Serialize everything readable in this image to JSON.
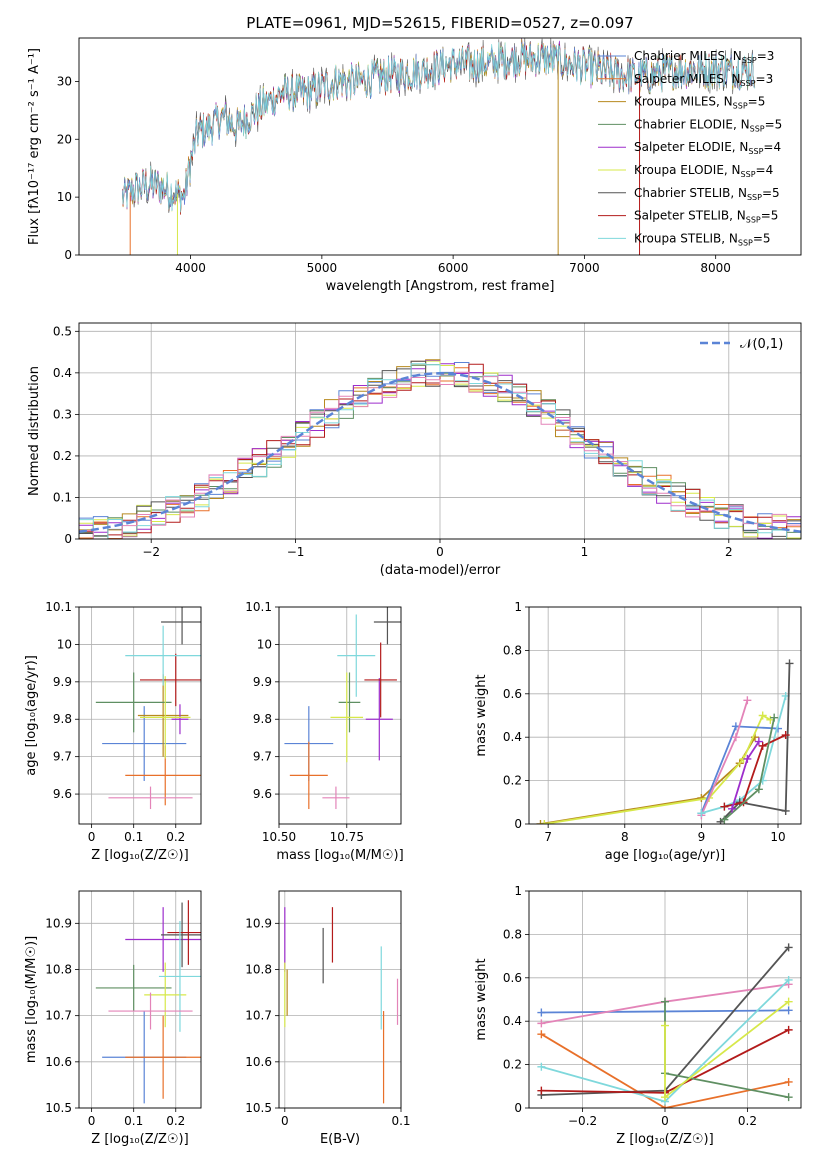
{
  "figure_title": "PLATE=0961, MJD=52615, FIBERID=0527, z=0.097",
  "colors": {
    "Chabrier MILES": "#5b84d6",
    "Salpeter MILES": "#e8702a",
    "Kroupa MILES": "#b7891f",
    "Chabrier ELODIE": "#5f8f62",
    "Salpeter ELODIE": "#9d2ecc",
    "Kroupa ELODIE": "#d7e84a",
    "Chabrier STELIB": "#545454",
    "Salpeter STELIB": "#b31b1b",
    "Kroupa STELIB": "#7fd8dc",
    "pink": "#e384b8",
    "normal": "#5b84d6"
  },
  "chart_data": [
    {
      "id": "spectrum",
      "type": "line",
      "xlabel": "wavelength [Angstrom, rest frame]",
      "ylabel": "Flux [fλ10⁻¹⁷ erg cm⁻² s⁻¹ A⁻¹]",
      "xlim": [
        3150,
        8650
      ],
      "ylim": [
        0,
        37.5
      ],
      "xticks": [
        4000,
        5000,
        6000,
        7000,
        8000
      ],
      "yticks": [
        0,
        10,
        20,
        30
      ],
      "legend_position": "upper-right",
      "legend": [
        "Chabrier MILES, N_SSP=3",
        "Salpeter MILES, N_SSP=3",
        "Kroupa MILES, N_SSP=5",
        "Chabrier ELODIE, N_SSP=5",
        "Salpeter ELODIE, N_SSP=4",
        "Kroupa ELODIE, N_SSP=4",
        "Chabrier STELIB, N_SSP=5",
        "Salpeter STELIB, N_SSP=5",
        "Kroupa STELIB, N_SSP=5"
      ],
      "shape_x": [
        3500,
        3550,
        3650,
        3750,
        3850,
        3950,
        4000,
        4050,
        4150,
        4250,
        4350,
        4500,
        4700,
        4900,
        5100,
        5300,
        5500,
        5800,
        6000,
        6200,
        6500,
        6700,
        6900,
        7100,
        7300,
        7500,
        7700,
        7900,
        8100,
        8300
      ],
      "shape_y": [
        10,
        11,
        12,
        12,
        11,
        10,
        16,
        21,
        22,
        24,
        22,
        25,
        28,
        28,
        30,
        30,
        31,
        32,
        33,
        33,
        34,
        34,
        33,
        32,
        31,
        31,
        32,
        32,
        32,
        32
      ],
      "grid": false
    },
    {
      "id": "residual_hist",
      "type": "line",
      "xlabel": "(data-model)/error",
      "ylabel": "Normed distribution",
      "xlim": [
        -2.5,
        2.5
      ],
      "ylim": [
        0,
        0.52
      ],
      "xticks": [
        -2,
        -1,
        0,
        1,
        2
      ],
      "yticks": [
        0.0,
        0.1,
        0.2,
        0.3,
        0.4,
        0.5
      ],
      "legend": [
        "𝒩(0,1)"
      ],
      "legend_position": "upper-right",
      "grid": true
    },
    {
      "id": "age_vs_Z",
      "type": "scatter",
      "xlabel": "Z [log₁₀(Z/Z☉)]",
      "ylabel": "age  [log₁₀(age/yr)]",
      "xlim": [
        -0.03,
        0.26
      ],
      "ylim": [
        9.52,
        10.1
      ],
      "xticks": [
        0.0,
        0.1,
        0.2
      ],
      "yticks": [
        9.6,
        9.7,
        9.8,
        9.9,
        10.0,
        10.1
      ],
      "grid": true,
      "points": [
        {
          "series": "Chabrier MILES",
          "x": 0.125,
          "y": 9.735,
          "xerr": 0.1,
          "yerr": 0.1
        },
        {
          "series": "Salpeter MILES",
          "x": 0.175,
          "y": 9.65,
          "xerr": 0.095,
          "yerr": 0.08
        },
        {
          "series": "Kroupa MILES",
          "x": 0.17,
          "y": 9.81,
          "xerr": 0.06,
          "yerr": 0.11
        },
        {
          "series": "Chabrier ELODIE",
          "x": 0.1,
          "y": 9.845,
          "xerr": 0.09,
          "yerr": 0.08
        },
        {
          "series": "Salpeter ELODIE",
          "x": 0.21,
          "y": 9.8,
          "xerr": 0.02,
          "yerr": 0.04
        },
        {
          "series": "Kroupa ELODIE",
          "x": 0.175,
          "y": 9.805,
          "xerr": 0.06,
          "yerr": 0.11
        },
        {
          "series": "Chabrier STELIB",
          "x": 0.215,
          "y": 10.06,
          "xerr": 0.05,
          "yerr": 0.06
        },
        {
          "series": "Salpeter STELIB",
          "x": 0.2,
          "y": 9.905,
          "xerr": 0.085,
          "yerr": 0.07
        },
        {
          "series": "Kroupa STELIB",
          "x": 0.17,
          "y": 9.97,
          "xerr": 0.09,
          "yerr": 0.08
        },
        {
          "series": "pink",
          "x": 0.14,
          "y": 9.59,
          "xerr": 0.1,
          "yerr": 0.03
        }
      ]
    },
    {
      "id": "age_vs_mass",
      "type": "scatter",
      "xlabel": "mass [log₁₀(M/M☉)]",
      "xlim": [
        10.5,
        10.95
      ],
      "ylim": [
        9.52,
        10.1
      ],
      "xticks": [
        10.5,
        10.75
      ],
      "xticklabels": [
        "10.50",
        "10.75"
      ],
      "yticks": [
        9.6,
        9.7,
        9.8,
        9.9,
        10.0,
        10.1
      ],
      "grid": true,
      "points": [
        {
          "series": "Chabrier MILES",
          "x": 10.61,
          "y": 9.735,
          "xerr": 0.09,
          "yerr": 0.1
        },
        {
          "series": "Salpeter MILES",
          "x": 10.61,
          "y": 9.65,
          "xerr": 0.07,
          "yerr": 0.09
        },
        {
          "series": "Chabrier ELODIE",
          "x": 10.76,
          "y": 9.845,
          "xerr": 0.04,
          "yerr": 0.08
        },
        {
          "series": "Salpeter ELODIE",
          "x": 10.87,
          "y": 9.8,
          "xerr": 0.05,
          "yerr": 0.11
        },
        {
          "series": "Kroupa ELODIE",
          "x": 10.75,
          "y": 9.805,
          "xerr": 0.06,
          "yerr": 0.12
        },
        {
          "series": "Chabrier STELIB",
          "x": 10.9,
          "y": 10.06,
          "xerr": 0.05,
          "yerr": 0.06
        },
        {
          "series": "Salpeter STELIB",
          "x": 10.875,
          "y": 9.905,
          "xerr": 0.06,
          "yerr": 0.1
        },
        {
          "series": "Kroupa STELIB",
          "x": 10.785,
          "y": 9.97,
          "xerr": 0.07,
          "yerr": 0.11
        },
        {
          "series": "pink",
          "x": 10.71,
          "y": 9.59,
          "xerr": 0.05,
          "yerr": 0.03
        }
      ]
    },
    {
      "id": "weight_vs_age",
      "type": "line",
      "xlabel": "age  [log₁₀(age/yr)]",
      "ylabel": "mass weight",
      "xlim": [
        6.75,
        10.3
      ],
      "ylim": [
        0,
        1.0
      ],
      "xticks": [
        7,
        8,
        9,
        10
      ],
      "yticks": [
        0.0,
        0.2,
        0.4,
        0.6,
        0.8,
        1.0
      ],
      "grid": true,
      "series": [
        {
          "series": "Kroupa MILES",
          "x": [
            6.9,
            9.0,
            9.5,
            9.7
          ],
          "y": [
            0.0,
            0.12,
            0.28,
            0.4
          ]
        },
        {
          "series": "Kroupa ELODIE",
          "x": [
            6.95,
            9.1,
            9.55,
            9.8,
            9.9
          ],
          "y": [
            0.0,
            0.12,
            0.3,
            0.5,
            0.48
          ]
        },
        {
          "series": "Chabrier MILES",
          "x": [
            9.0,
            9.45,
            10.0
          ],
          "y": [
            0.05,
            0.45,
            0.44
          ]
        },
        {
          "series": "pink",
          "x": [
            9.0,
            9.45,
            9.6
          ],
          "y": [
            0.04,
            0.4,
            0.57
          ]
        },
        {
          "series": "Kroupa STELIB",
          "x": [
            9.0,
            9.3,
            9.5,
            9.8,
            10.1
          ],
          "y": [
            0.05,
            0.08,
            0.11,
            0.2,
            0.59
          ]
        },
        {
          "series": "Chabrier STELIB",
          "x": [
            9.25,
            9.5,
            10.1,
            10.15
          ],
          "y": [
            0.01,
            0.1,
            0.06,
            0.74
          ]
        },
        {
          "series": "Salpeter STELIB",
          "x": [
            9.3,
            9.55,
            9.8,
            10.1
          ],
          "y": [
            0.08,
            0.1,
            0.36,
            0.41
          ]
        },
        {
          "series": "Chabrier ELODIE",
          "x": [
            9.3,
            9.75,
            9.95
          ],
          "y": [
            0.02,
            0.16,
            0.49
          ]
        },
        {
          "series": "Salpeter ELODIE",
          "x": [
            9.4,
            9.6,
            9.75
          ],
          "y": [
            0.07,
            0.3,
            0.38
          ]
        }
      ]
    },
    {
      "id": "mass_vs_Z",
      "type": "scatter",
      "xlabel": "Z [log₁₀(Z/Z☉)]",
      "ylabel": "mass [log₁₀(M/M☉)]",
      "xlim": [
        -0.03,
        0.26
      ],
      "ylim": [
        10.5,
        10.97
      ],
      "xticks": [
        0.0,
        0.1,
        0.2
      ],
      "yticks": [
        10.5,
        10.6,
        10.7,
        10.8,
        10.9
      ],
      "grid": true,
      "points": [
        {
          "series": "Chabrier MILES",
          "x": 0.125,
          "y": 10.61,
          "xerr": 0.1,
          "yerr": 0.1
        },
        {
          "series": "Salpeter MILES",
          "x": 0.17,
          "y": 10.61,
          "xerr": 0.09,
          "yerr": 0.09
        },
        {
          "series": "Chabrier ELODIE",
          "x": 0.1,
          "y": 10.76,
          "xerr": 0.09,
          "yerr": 0.05
        },
        {
          "series": "Salpeter ELODIE",
          "x": 0.17,
          "y": 10.865,
          "xerr": 0.09,
          "yerr": 0.07
        },
        {
          "series": "Kroupa ELODIE",
          "x": 0.175,
          "y": 10.745,
          "xerr": 0.05,
          "yerr": 0.07
        },
        {
          "series": "Chabrier STELIB",
          "x": 0.215,
          "y": 10.875,
          "xerr": 0.05,
          "yerr": 0.07
        },
        {
          "series": "Salpeter STELIB",
          "x": 0.23,
          "y": 10.88,
          "xerr": 0.05,
          "yerr": 0.07
        },
        {
          "series": "Kroupa STELIB",
          "x": 0.21,
          "y": 10.785,
          "xerr": 0.05,
          "yerr": 0.12
        },
        {
          "series": "pink",
          "x": 0.14,
          "y": 10.71,
          "xerr": 0.1,
          "yerr": 0.04
        }
      ]
    },
    {
      "id": "mass_vs_ebv",
      "type": "scatter",
      "xlabel": "E(B-V)",
      "xlim": [
        -0.005,
        0.1
      ],
      "ylim": [
        10.5,
        10.97
      ],
      "xticks": [
        0.0,
        0.1
      ],
      "yticks": [
        10.5,
        10.6,
        10.7,
        10.8,
        10.9
      ],
      "grid": true,
      "points": [
        {
          "series": "Salpeter ELODIE",
          "x": 0.0,
          "y": 10.865,
          "yerr": 0.07
        },
        {
          "series": "Kroupa ELODIE",
          "x": 0.0,
          "y": 10.745,
          "yerr": 0.07
        },
        {
          "series": "Kroupa MILES",
          "x": 0.002,
          "y": 10.75,
          "yerr": 0.05
        },
        {
          "series": "Chabrier STELIB",
          "x": 0.033,
          "y": 10.83,
          "yerr": 0.06
        },
        {
          "series": "Salpeter STELIB",
          "x": 0.041,
          "y": 10.875,
          "yerr": 0.06
        },
        {
          "series": "Kroupa STELIB",
          "x": 0.083,
          "y": 10.76,
          "yerr": 0.09
        },
        {
          "series": "Salpeter MILES",
          "x": 0.085,
          "y": 10.61,
          "yerr": 0.1
        },
        {
          "series": "pink",
          "x": 0.097,
          "y": 10.73,
          "yerr": 0.05
        }
      ]
    },
    {
      "id": "weight_vs_Z",
      "type": "line",
      "xlabel": "Z [log₁₀(Z/Z☉)]",
      "ylabel": "mass weight",
      "xlim": [
        -0.33,
        0.33
      ],
      "ylim": [
        0,
        1.0
      ],
      "xticks": [
        -0.2,
        0.0,
        0.2
      ],
      "yticks": [
        0.0,
        0.2,
        0.4,
        0.6,
        0.8,
        1.0
      ],
      "grid": true,
      "series": [
        {
          "series": "Chabrier MILES",
          "x": [
            -0.3,
            0.3
          ],
          "y": [
            0.44,
            0.45
          ]
        },
        {
          "series": "pink",
          "x": [
            -0.3,
            0.0,
            0.3
          ],
          "y": [
            0.39,
            0.49,
            0.57
          ]
        },
        {
          "series": "Salpeter MILES",
          "x": [
            -0.3,
            0.0,
            0.3
          ],
          "y": [
            0.34,
            0.0,
            0.12
          ]
        },
        {
          "series": "Kroupa STELIB",
          "x": [
            -0.3,
            0.0,
            0.3
          ],
          "y": [
            0.19,
            0.03,
            0.59
          ]
        },
        {
          "series": "Chabrier STELIB",
          "x": [
            -0.3,
            0.0,
            0.3
          ],
          "y": [
            0.06,
            0.08,
            0.74
          ]
        },
        {
          "series": "Salpeter STELIB",
          "x": [
            -0.3,
            0.0,
            0.3
          ],
          "y": [
            0.08,
            0.07,
            0.36
          ]
        },
        {
          "series": "Chabrier ELODIE",
          "x": [
            0.0,
            0.0,
            0.3
          ],
          "y": [
            0.49,
            0.16,
            0.05
          ]
        },
        {
          "series": "Kroupa ELODIE",
          "x": [
            0.0,
            0.0,
            0.3
          ],
          "y": [
            0.38,
            0.05,
            0.49
          ]
        }
      ]
    }
  ]
}
